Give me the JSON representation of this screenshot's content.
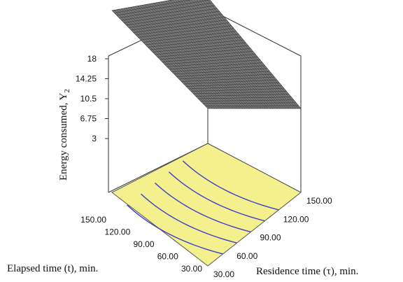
{
  "chart_data": {
    "type": "surface3d",
    "title": "",
    "zlabel": "Energy consumed, Y",
    "zlabel_subscript": "2",
    "xlabel": "Residence time (τ), min.",
    "ylabel": "Elapsed time (t), min.",
    "z_ticks": [
      "18",
      "14.25",
      "10.5",
      "6.75",
      "3"
    ],
    "x_ticks": [
      "30.00",
      "60.00",
      "90.00",
      "120.00",
      "150.00"
    ],
    "y_ticks": [
      "30.00",
      "60.00",
      "90.00",
      "120.00",
      "150.00"
    ],
    "zlim": [
      3,
      18
    ],
    "xlim": [
      30,
      150
    ],
    "ylim": [
      30,
      150
    ],
    "surface_samples": [
      {
        "tau": 30,
        "t": 150,
        "y2": 18
      },
      {
        "tau": 30,
        "t": 30,
        "y2": 12
      },
      {
        "tau": 150,
        "t": 150,
        "y2": 11
      },
      {
        "tau": 150,
        "t": 30,
        "y2": 3
      }
    ],
    "surface_color": "#7a7a7a",
    "floor_color": "#f5f08e",
    "contour_color": "#3d3dcc"
  }
}
